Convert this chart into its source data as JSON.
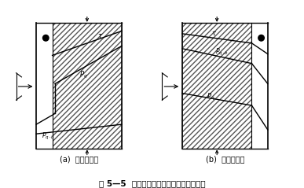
{
  "title": "图 5—5  材料层次布置不同时的内部湿状况",
  "subtitle_a": "(a)  内部有冷凝",
  "subtitle_b": "(b)  内部无冷凝",
  "background": "#ffffff",
  "figsize": [
    3.87,
    2.39
  ],
  "dpi": 100
}
